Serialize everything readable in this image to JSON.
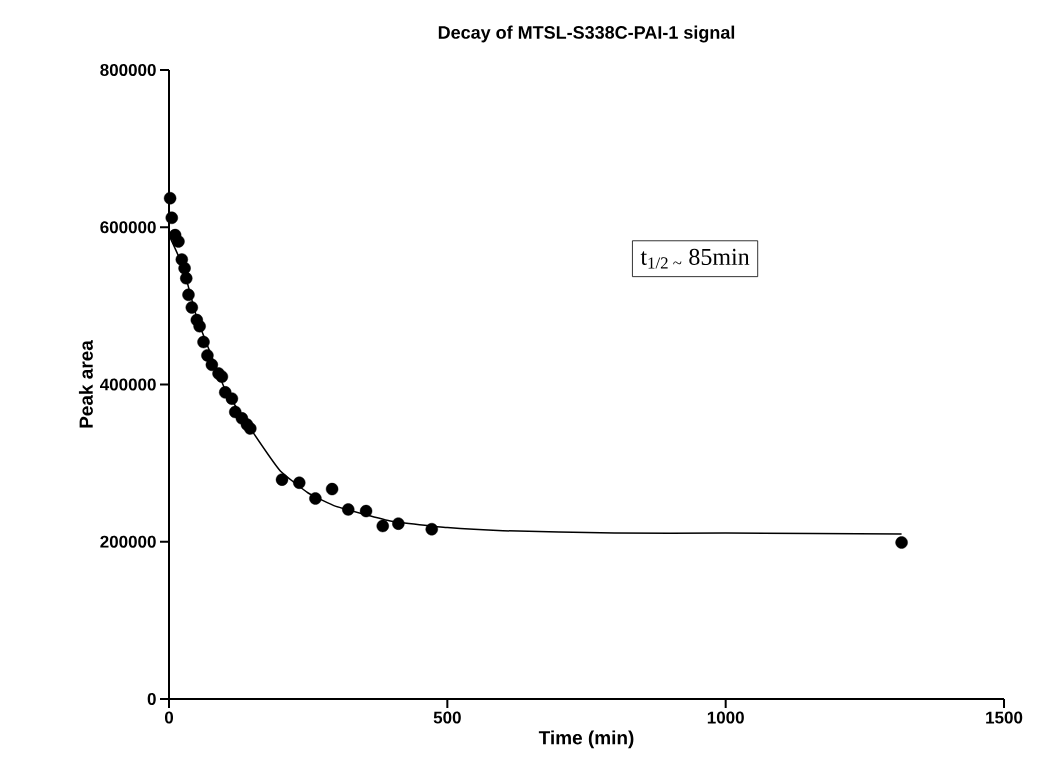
{
  "chart_data": {
    "type": "scatter",
    "title": "Decay of MTSL-S338C-PAI-1 signal",
    "xlabel": "Time (min)",
    "ylabel": "Peak area",
    "xlim": [
      0,
      1500
    ],
    "ylim": [
      0,
      800000
    ],
    "xticks": [
      0,
      500,
      1000,
      1500
    ],
    "yticks": [
      0,
      200000,
      400000,
      600000,
      800000
    ],
    "annotations": [
      "t$_{1/2 ~}$ 85min"
    ],
    "series": [
      {
        "color": "#000000",
        "marker": "circle",
        "x": [
          2,
          5,
          11,
          17,
          23,
          28,
          31,
          35,
          41,
          50,
          55,
          62,
          69,
          77,
          89,
          95,
          101,
          113,
          119,
          131,
          140,
          146,
          203,
          234,
          263,
          293,
          322,
          354,
          384,
          412,
          472,
          1316
        ],
        "values": [
          637000,
          612000,
          590000,
          582000,
          559000,
          548000,
          535000,
          514000,
          498000,
          482000,
          474000,
          454000,
          437000,
          425000,
          414000,
          410000,
          390000,
          382000,
          365000,
          357000,
          349000,
          344000,
          279000,
          275000,
          255000,
          267000,
          241000,
          239000,
          220000,
          223000,
          216000,
          199000
        ]
      },
      {
        "type": "line",
        "color": "#000000",
        "marker": "none",
        "x": [
          0,
          25,
          50,
          100,
          150,
          200,
          250,
          300,
          400,
          500,
          600,
          800,
          1000,
          1316
        ],
        "values": [
          590000,
          550000,
          485000,
          395000,
          340000,
          290000,
          262000,
          245000,
          226000,
          218000,
          214000,
          211000,
          211000,
          210000
        ]
      }
    ]
  }
}
